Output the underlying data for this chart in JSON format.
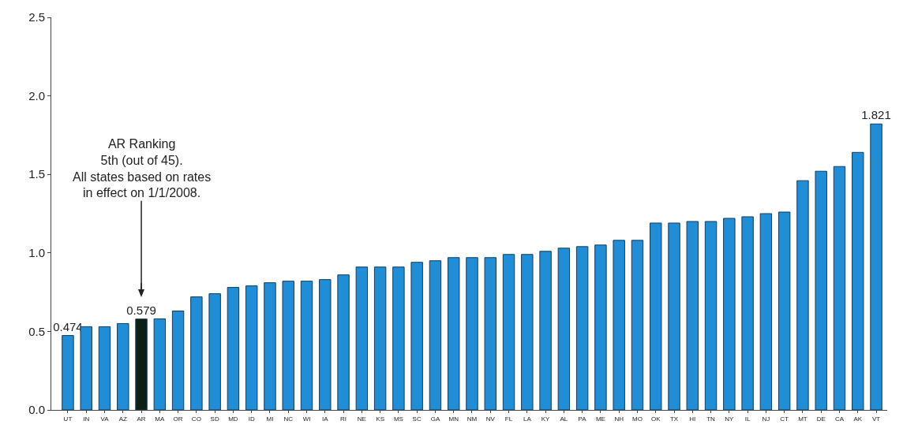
{
  "chart_data": {
    "type": "bar",
    "categories": [
      "UT",
      "IN",
      "VA",
      "AZ",
      "AR",
      "MA",
      "OR",
      "CO",
      "SD",
      "MD",
      "ID",
      "MI",
      "NC",
      "WI",
      "IA",
      "RI",
      "NE",
      "KS",
      "MS",
      "SC",
      "GA",
      "MN",
      "NM",
      "NV",
      "FL",
      "LA",
      "KY",
      "AL",
      "PA",
      "ME",
      "NH",
      "MO",
      "OK",
      "TX",
      "HI",
      "TN",
      "NY",
      "IL",
      "NJ",
      "CT",
      "MT",
      "DE",
      "CA",
      "AK",
      "VT"
    ],
    "values": [
      0.474,
      0.53,
      0.53,
      0.55,
      0.579,
      0.58,
      0.63,
      0.72,
      0.74,
      0.78,
      0.79,
      0.81,
      0.82,
      0.82,
      0.83,
      0.86,
      0.91,
      0.91,
      0.91,
      0.94,
      0.95,
      0.97,
      0.97,
      0.97,
      0.99,
      0.99,
      1.01,
      1.03,
      1.04,
      1.05,
      1.08,
      1.08,
      1.19,
      1.19,
      1.2,
      1.2,
      1.22,
      1.23,
      1.25,
      1.26,
      1.46,
      1.52,
      1.55,
      1.64,
      1.821
    ],
    "value_labels": [
      "0.474",
      null,
      null,
      null,
      "0.579",
      null,
      null,
      null,
      null,
      null,
      null,
      null,
      null,
      null,
      null,
      null,
      null,
      null,
      null,
      null,
      null,
      null,
      null,
      null,
      null,
      null,
      null,
      null,
      null,
      null,
      null,
      null,
      null,
      null,
      null,
      null,
      null,
      null,
      null,
      null,
      null,
      null,
      null,
      null,
      "1.821"
    ],
    "colors": [
      "#1f8ed6",
      "#1f8ed6",
      "#1f8ed6",
      "#1f8ed6",
      "#0b1f14",
      "#1f8ed6",
      "#1f8ed6",
      "#1f8ed6",
      "#1f8ed6",
      "#1f8ed6",
      "#1f8ed6",
      "#1f8ed6",
      "#1f8ed6",
      "#1f8ed6",
      "#1f8ed6",
      "#1f8ed6",
      "#1f8ed6",
      "#1f8ed6",
      "#1f8ed6",
      "#1f8ed6",
      "#1f8ed6",
      "#1f8ed6",
      "#1f8ed6",
      "#1f8ed6",
      "#1f8ed6",
      "#1f8ed6",
      "#1f8ed6",
      "#1f8ed6",
      "#1f8ed6",
      "#1f8ed6",
      "#1f8ed6",
      "#1f8ed6",
      "#1f8ed6",
      "#1f8ed6",
      "#1f8ed6",
      "#1f8ed6",
      "#1f8ed6",
      "#1f8ed6",
      "#1f8ed6",
      "#1f8ed6",
      "#1f8ed6",
      "#1f8ed6",
      "#1f8ed6",
      "#1f8ed6",
      "#1f8ed6"
    ],
    "ylim": [
      0,
      2.5
    ],
    "yticks": [
      {
        "value": 0,
        "label": "0.0"
      },
      {
        "value": 0.5,
        "label": "0.5"
      },
      {
        "value": 1,
        "label": "1.0"
      },
      {
        "value": 1.5,
        "label": "1.5"
      },
      {
        "value": 2,
        "label": "2.0"
      },
      {
        "value": 2.5,
        "label": "2.5"
      }
    ],
    "annotations": [
      {
        "text": "AR Ranking\n5th (out of 45).\nAll states based on rates\nin effect on 1/1/2008.",
        "x": "AR",
        "y": 0.579
      }
    ],
    "grid": false
  }
}
